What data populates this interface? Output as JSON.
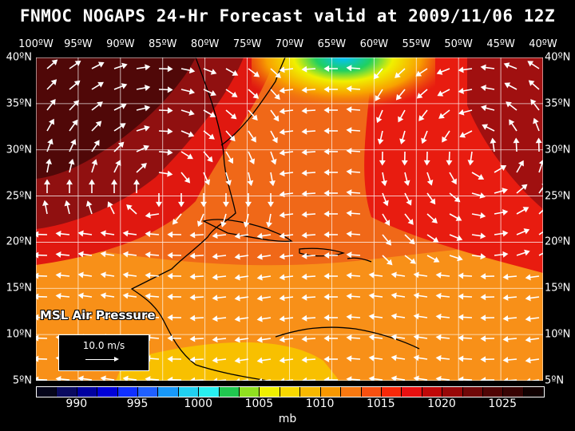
{
  "title": "FNMOC NOGAPS 24-Hr Forecast valid at 2009/11/06 12Z",
  "lon_labels": [
    "100ºW",
    "95ºW",
    "90ºW",
    "85ºW",
    "80ºW",
    "75ºW",
    "70ºW",
    "65ºW",
    "60ºW",
    "55ºW",
    "50ºW",
    "45ºW",
    "40ºW"
  ],
  "lat_labels": [
    "40ºN",
    "35ºN",
    "30ºN",
    "25ºN",
    "20ºN",
    "15ºN",
    "10ºN",
    "5ºN"
  ],
  "map_label": "MSL Air Pressure",
  "scale_label": "10.0 m/s",
  "colorbar": {
    "labels": [
      "990",
      "995",
      "1000",
      "1005",
      "1010",
      "1015",
      "1020",
      "1025"
    ],
    "units": "mb",
    "colors": [
      "#05051a",
      "#0a0a60",
      "#0000a0",
      "#0000d8",
      "#1030ff",
      "#2060ff",
      "#1898f8",
      "#20d0f0",
      "#28f0f0",
      "#20c850",
      "#90e020",
      "#f0f000",
      "#f8d800",
      "#f8b800",
      "#f89800",
      "#f87810",
      "#f85010",
      "#f82808",
      "#e81010",
      "#c00808",
      "#980808",
      "#700808",
      "#500505",
      "#380303",
      "#100000"
    ]
  },
  "colors": {
    "background": "#000000",
    "text": "#ffffff"
  }
}
